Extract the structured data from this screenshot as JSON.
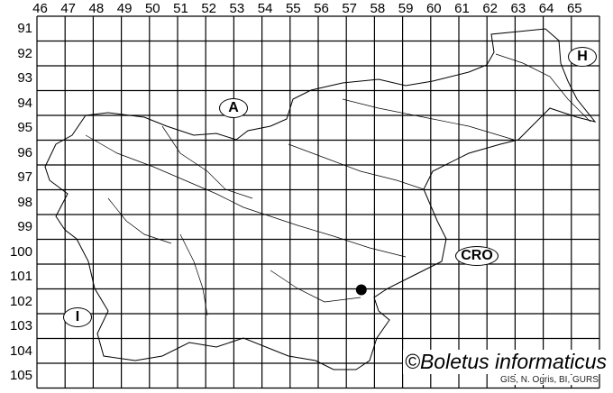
{
  "map": {
    "columns": [
      "46",
      "47",
      "48",
      "49",
      "50",
      "51",
      "52",
      "53",
      "54",
      "55",
      "56",
      "57",
      "58",
      "59",
      "60",
      "61",
      "62",
      "63",
      "64",
      "65"
    ],
    "rows": [
      "91",
      "92",
      "93",
      "94",
      "95",
      "96",
      "97",
      "98",
      "99",
      "100",
      "101",
      "102",
      "103",
      "104",
      "105"
    ],
    "regions": [
      {
        "label": "A"
      },
      {
        "label": "H"
      },
      {
        "label": "CRO"
      },
      {
        "label": "I"
      }
    ],
    "records": [
      {
        "column": "57",
        "row": "102"
      }
    ],
    "record_color": "#000000",
    "line_color": "#000000"
  },
  "credit": "©Boletus informaticus",
  "source": "GIS, N. Ogris, BI, GURS"
}
